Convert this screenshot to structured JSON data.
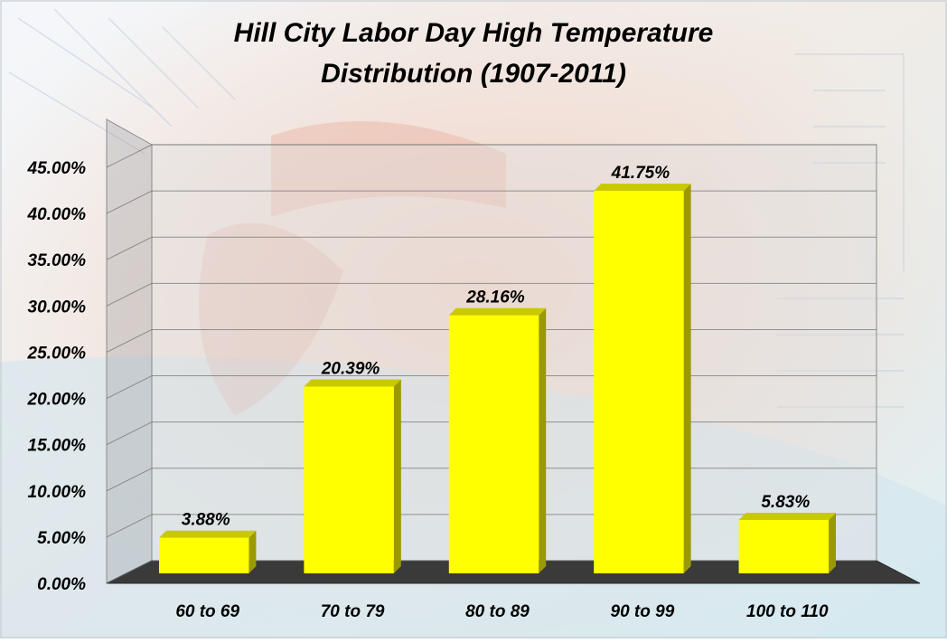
{
  "chart_data": {
    "type": "bar",
    "title": "Hill City Labor Day High Temperature",
    "subtitle": "Distribution (1907-2011)",
    "categories": [
      "60 to 69",
      "70 to 79",
      "80 to 89",
      "90 to 99",
      "100 to 110"
    ],
    "values": [
      3.88,
      20.39,
      28.16,
      41.75,
      5.83
    ],
    "data_labels": [
      "3.88%",
      "20.39%",
      "28.16%",
      "41.75%",
      "5.83%"
    ],
    "y_tick_labels": [
      "0.00%",
      "5.00%",
      "10.00%",
      "15.00%",
      "20.00%",
      "25.00%",
      "30.00%",
      "35.00%",
      "40.00%",
      "45.00%"
    ],
    "ylim": [
      0,
      45
    ],
    "xlabel": "",
    "ylabel": "",
    "grid": true,
    "legend": "none",
    "bar_color": "#ffff00",
    "floor_color": "#3a3a3a",
    "style": "3d-clustered-column"
  }
}
